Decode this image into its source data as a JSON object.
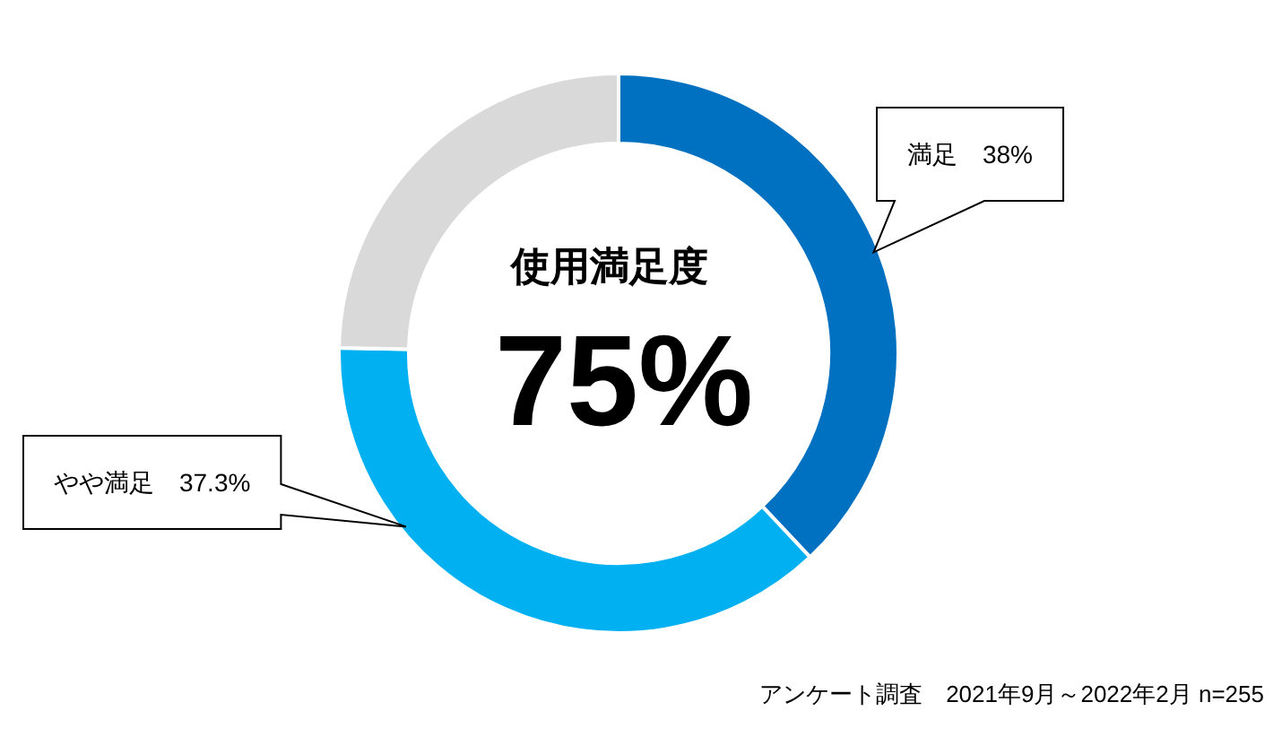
{
  "chart_data": {
    "type": "donut",
    "categories": [
      "満足",
      "やや満足",
      null
    ],
    "values": [
      38,
      37.3,
      24.7
    ],
    "colors": [
      "#0070c0",
      "#00b0f0",
      "#d9d9d9"
    ],
    "value_labels": [
      "38%",
      "37.3%",
      null
    ],
    "legend": false,
    "annotations": [
      "使用満足度",
      "75%",
      "アンケート調査　2021年9月～2022年2月 n=255"
    ]
  }
}
